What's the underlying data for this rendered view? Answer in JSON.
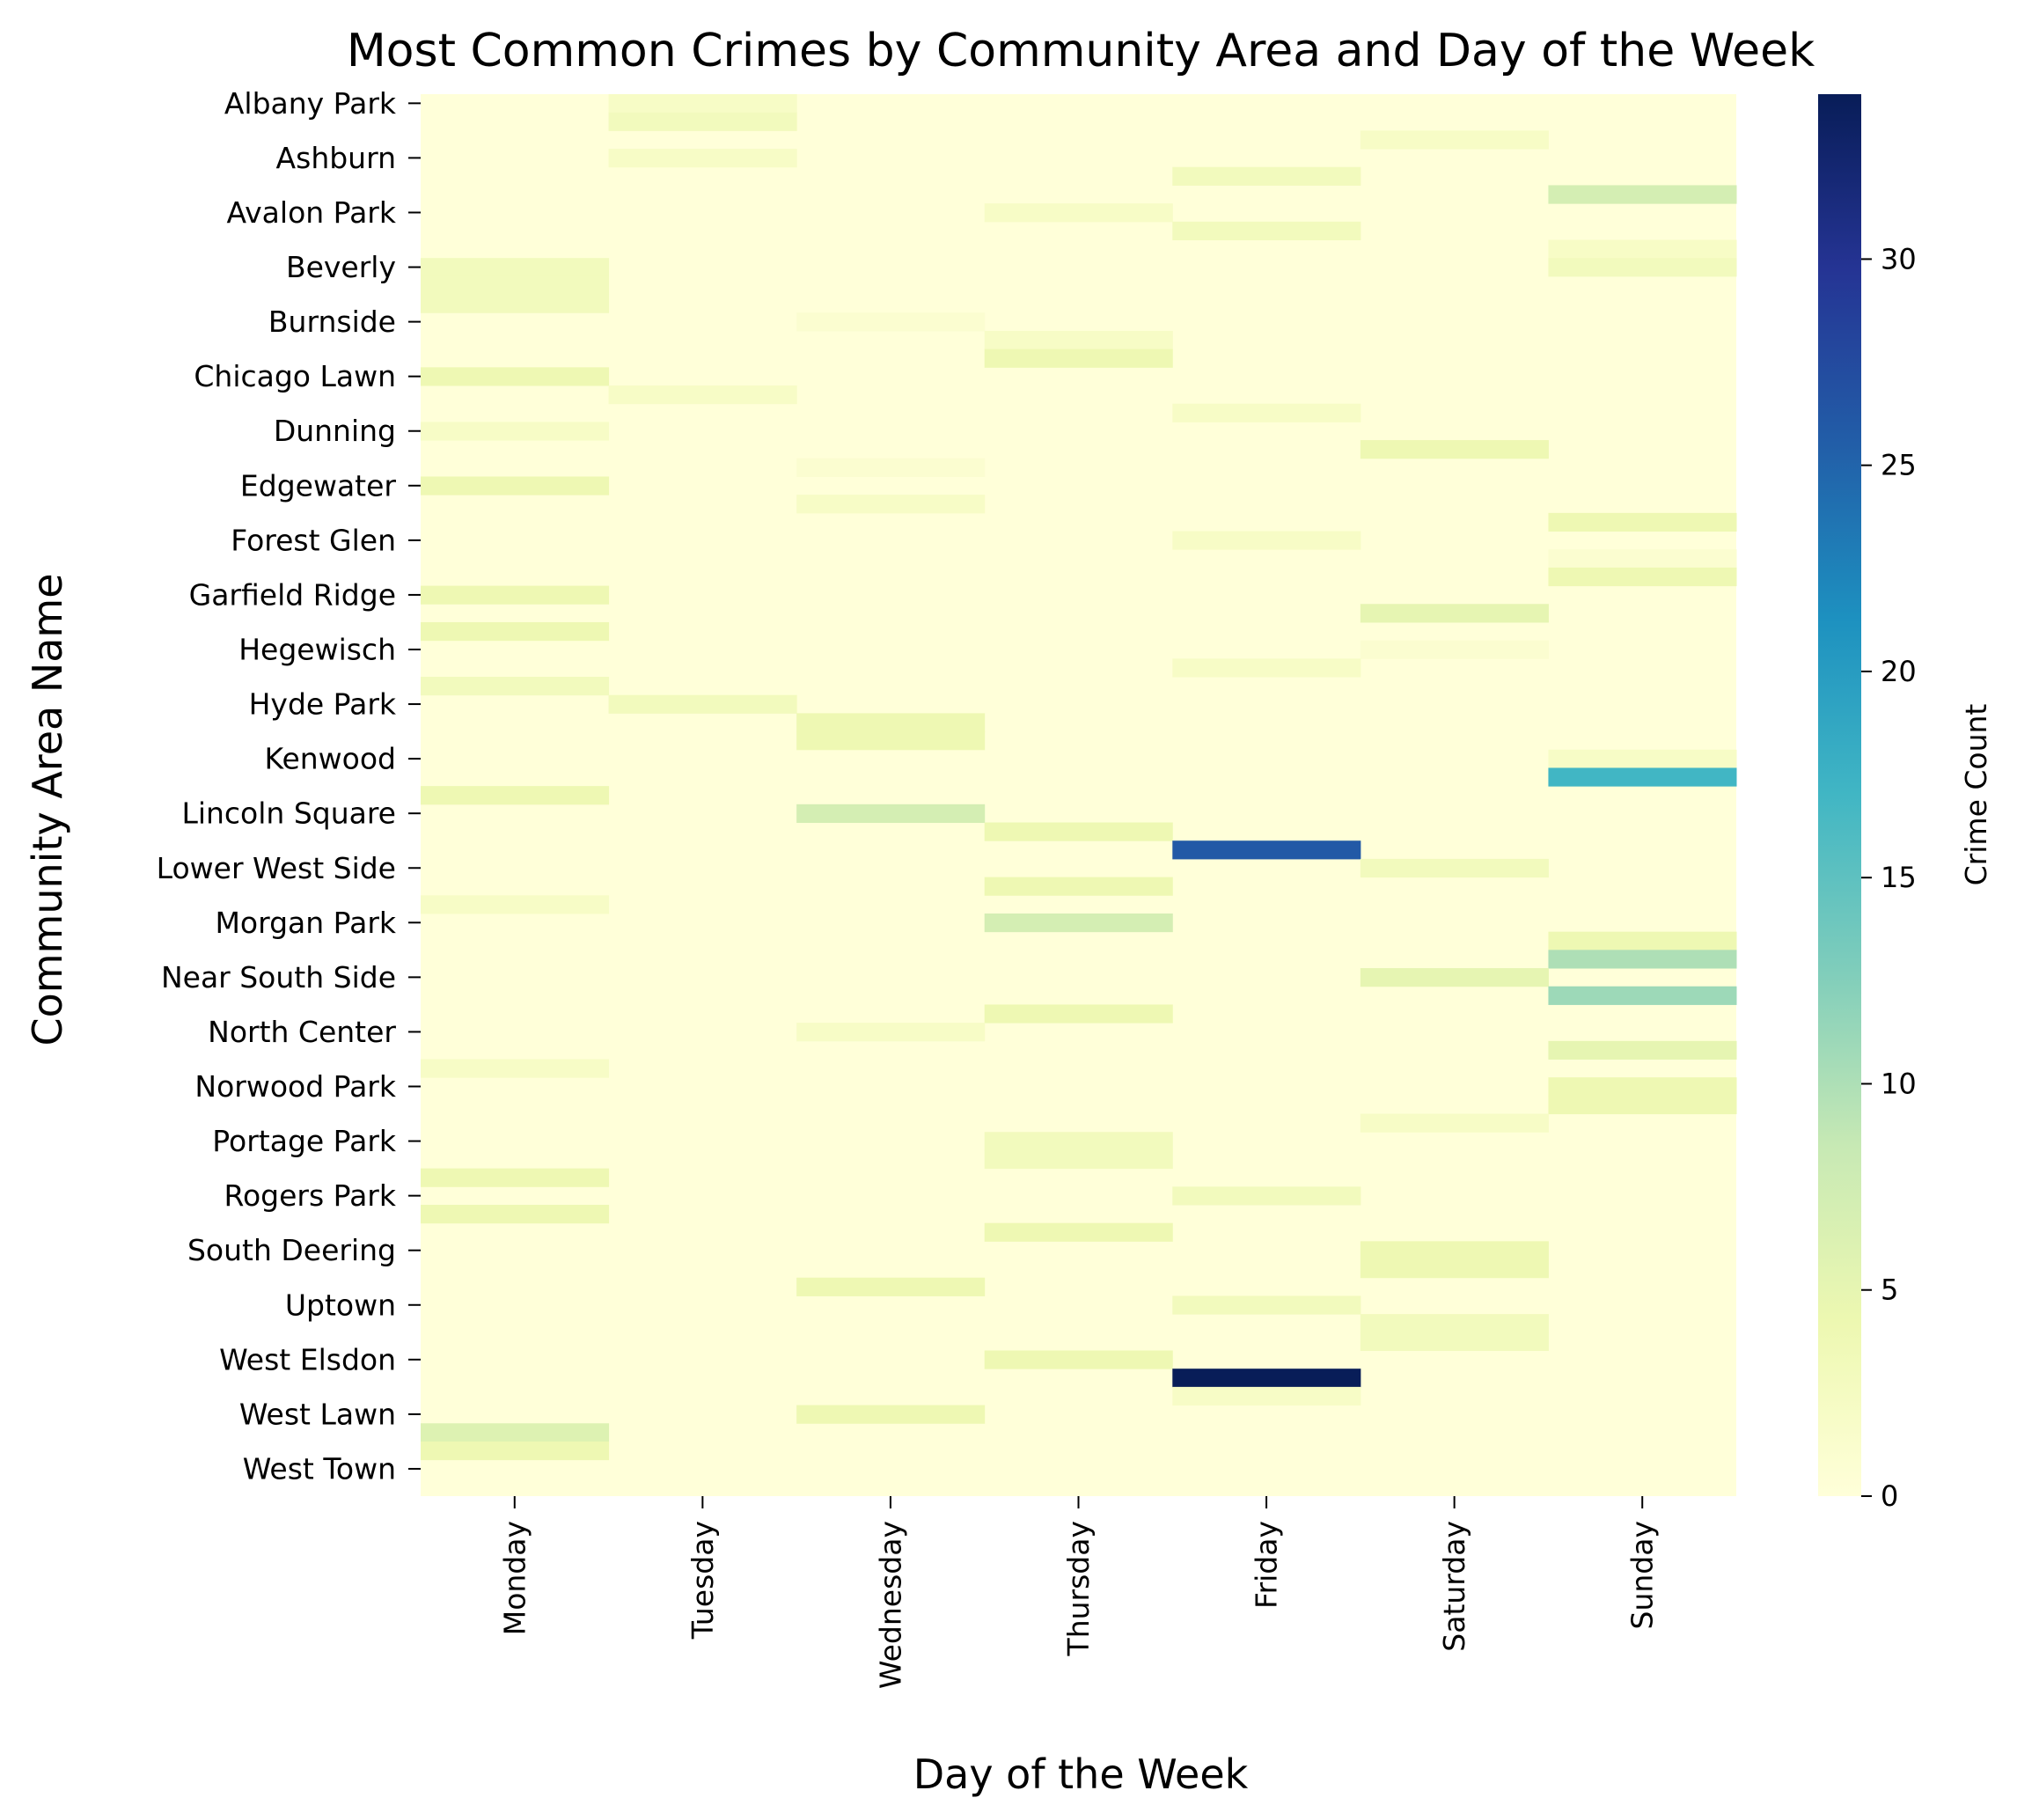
{
  "chart_data": {
    "type": "heatmap",
    "title": "Most Common Crimes by Community Area and Day of the Week",
    "xlabel": "Day of the Week",
    "ylabel": "Community Area Name",
    "colorbar_label": "Crime Count",
    "colormap": "YlGnBu",
    "vmin": 0,
    "vmax": 34,
    "colorbar_ticks": [
      0,
      5,
      10,
      15,
      20,
      25,
      30
    ],
    "x": [
      "Monday",
      "Tuesday",
      "Wednesday",
      "Thursday",
      "Friday",
      "Saturday",
      "Sunday"
    ],
    "y_tick_labels": [
      "Albany Park",
      "Ashburn",
      "Avalon Park",
      "Beverly",
      "Burnside",
      "Chicago Lawn",
      "Dunning",
      "Edgewater",
      "Forest Glen",
      "Garfield Ridge",
      "Hegewisch",
      "Hyde Park",
      "Kenwood",
      "Lincoln Square",
      "Lower West Side",
      "Morgan Park",
      "Near South Side",
      "North Center",
      "Norwood Park",
      "Portage Park",
      "Rogers Park",
      "South Deering",
      "Uptown",
      "West Elsdon",
      "West Lawn",
      "West Town"
    ],
    "y_tick_rows": [
      0,
      3,
      6,
      9,
      12,
      15,
      18,
      21,
      24,
      27,
      30,
      33,
      36,
      39,
      42,
      45,
      48,
      51,
      54,
      57,
      60,
      63,
      66,
      69,
      72,
      75
    ],
    "n_rows": 77,
    "nonzero_cells": [
      {
        "row": 0,
        "day": "Tuesday",
        "value": 2
      },
      {
        "row": 1,
        "day": "Tuesday",
        "value": 3
      },
      {
        "row": 2,
        "day": "Saturday",
        "value": 2
      },
      {
        "row": 3,
        "day": "Tuesday",
        "value": 2
      },
      {
        "row": 4,
        "day": "Friday",
        "value": 3
      },
      {
        "row": 5,
        "day": "Sunday",
        "value": 7
      },
      {
        "row": 6,
        "day": "Thursday",
        "value": 2
      },
      {
        "row": 7,
        "day": "Friday",
        "value": 3
      },
      {
        "row": 8,
        "day": "Sunday",
        "value": 2
      },
      {
        "row": 9,
        "day": "Sunday",
        "value": 3
      },
      {
        "row": 9,
        "day": "Monday",
        "value": 3
      },
      {
        "row": 10,
        "day": "Monday",
        "value": 3
      },
      {
        "row": 11,
        "day": "Monday",
        "value": 3
      },
      {
        "row": 12,
        "day": "Wednesday",
        "value": 1
      },
      {
        "row": 13,
        "day": "Thursday",
        "value": 2
      },
      {
        "row": 14,
        "day": "Thursday",
        "value": 4
      },
      {
        "row": 15,
        "day": "Monday",
        "value": 4
      },
      {
        "row": 16,
        "day": "Tuesday",
        "value": 2
      },
      {
        "row": 17,
        "day": "Friday",
        "value": 2
      },
      {
        "row": 18,
        "day": "Monday",
        "value": 2
      },
      {
        "row": 19,
        "day": "Saturday",
        "value": 4
      },
      {
        "row": 20,
        "day": "Wednesday",
        "value": 1
      },
      {
        "row": 21,
        "day": "Monday",
        "value": 4
      },
      {
        "row": 22,
        "day": "Wednesday",
        "value": 2
      },
      {
        "row": 23,
        "day": "Sunday",
        "value": 4
      },
      {
        "row": 24,
        "day": "Friday",
        "value": 2
      },
      {
        "row": 25,
        "day": "Sunday",
        "value": 1
      },
      {
        "row": 26,
        "day": "Sunday",
        "value": 4
      },
      {
        "row": 27,
        "day": "Monday",
        "value": 4
      },
      {
        "row": 28,
        "day": "Saturday",
        "value": 5
      },
      {
        "row": 29,
        "day": "Monday",
        "value": 4
      },
      {
        "row": 30,
        "day": "Saturday",
        "value": 1
      },
      {
        "row": 31,
        "day": "Friday",
        "value": 2
      },
      {
        "row": 32,
        "day": "Monday",
        "value": 3
      },
      {
        "row": 33,
        "day": "Tuesday",
        "value": 3
      },
      {
        "row": 34,
        "day": "Wednesday",
        "value": 4
      },
      {
        "row": 35,
        "day": "Wednesday",
        "value": 4
      },
      {
        "row": 36,
        "day": "Sunday",
        "value": 2
      },
      {
        "row": 37,
        "day": "Sunday",
        "value": 17
      },
      {
        "row": 38,
        "day": "Monday",
        "value": 4
      },
      {
        "row": 39,
        "day": "Wednesday",
        "value": 7
      },
      {
        "row": 40,
        "day": "Thursday",
        "value": 4
      },
      {
        "row": 41,
        "day": "Friday",
        "value": 26
      },
      {
        "row": 42,
        "day": "Saturday",
        "value": 3
      },
      {
        "row": 43,
        "day": "Thursday",
        "value": 4
      },
      {
        "row": 44,
        "day": "Monday",
        "value": 2
      },
      {
        "row": 45,
        "day": "Thursday",
        "value": 7
      },
      {
        "row": 46,
        "day": "Sunday",
        "value": 4
      },
      {
        "row": 47,
        "day": "Sunday",
        "value": 10
      },
      {
        "row": 48,
        "day": "Saturday",
        "value": 5
      },
      {
        "row": 49,
        "day": "Sunday",
        "value": 11
      },
      {
        "row": 50,
        "day": "Thursday",
        "value": 4
      },
      {
        "row": 51,
        "day": "Wednesday",
        "value": 2
      },
      {
        "row": 52,
        "day": "Sunday",
        "value": 5
      },
      {
        "row": 53,
        "day": "Monday",
        "value": 2
      },
      {
        "row": 54,
        "day": "Sunday",
        "value": 4
      },
      {
        "row": 55,
        "day": "Sunday",
        "value": 4
      },
      {
        "row": 56,
        "day": "Saturday",
        "value": 2
      },
      {
        "row": 57,
        "day": "Thursday",
        "value": 3
      },
      {
        "row": 58,
        "day": "Thursday",
        "value": 3
      },
      {
        "row": 59,
        "day": "Monday",
        "value": 4
      },
      {
        "row": 60,
        "day": "Friday",
        "value": 3
      },
      {
        "row": 61,
        "day": "Monday",
        "value": 4
      },
      {
        "row": 62,
        "day": "Thursday",
        "value": 4
      },
      {
        "row": 63,
        "day": "Saturday",
        "value": 4
      },
      {
        "row": 64,
        "day": "Saturday",
        "value": 4
      },
      {
        "row": 65,
        "day": "Wednesday",
        "value": 4
      },
      {
        "row": 66,
        "day": "Friday",
        "value": 3
      },
      {
        "row": 67,
        "day": "Saturday",
        "value": 3
      },
      {
        "row": 68,
        "day": "Saturday",
        "value": 3
      },
      {
        "row": 69,
        "day": "Thursday",
        "value": 4
      },
      {
        "row": 70,
        "day": "Friday",
        "value": 34
      },
      {
        "row": 71,
        "day": "Friday",
        "value": 2
      },
      {
        "row": 72,
        "day": "Wednesday",
        "value": 4
      },
      {
        "row": 73,
        "day": "Monday",
        "value": 6
      },
      {
        "row": 74,
        "day": "Monday",
        "value": 4
      }
    ]
  }
}
